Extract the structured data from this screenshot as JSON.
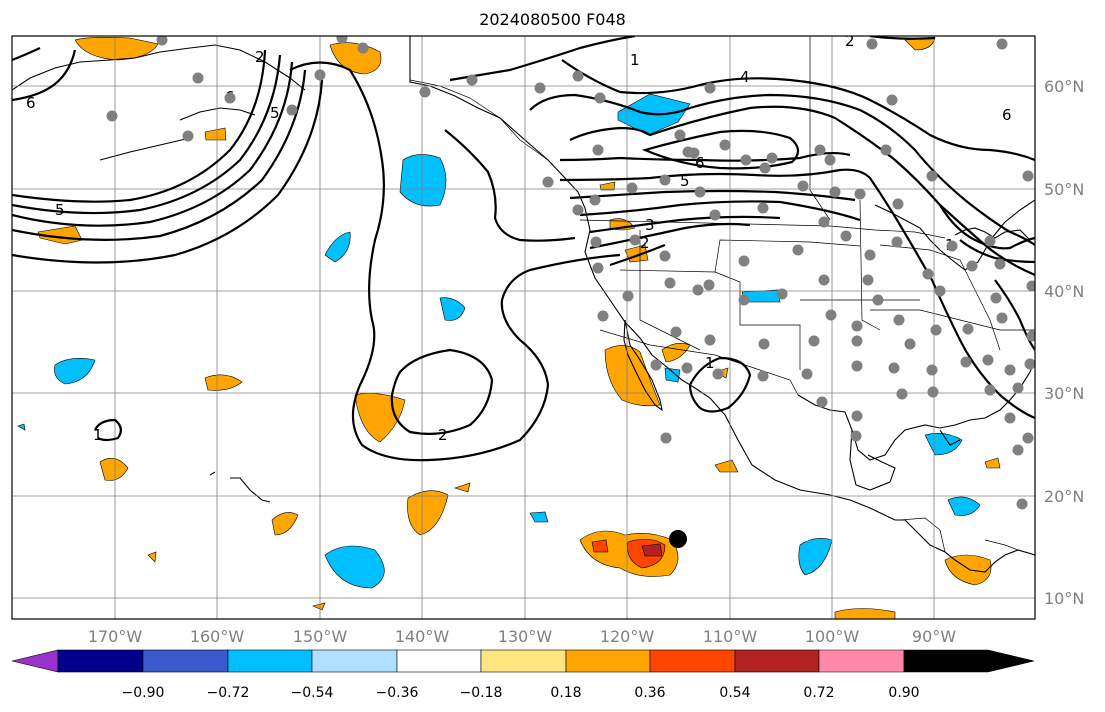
{
  "title": "2024080500 F048",
  "map": {
    "lon_ticks": [
      "170°W",
      "160°W",
      "150°W",
      "140°W",
      "130°W",
      "120°W",
      "110°W",
      "100°W",
      "90°W"
    ],
    "lat_ticks": [
      "60°N",
      "50°N",
      "40°N",
      "30°N",
      "20°N",
      "10°N"
    ],
    "contour_labels": [
      "5",
      "6",
      "2",
      "2",
      "6",
      "1",
      "4",
      "6",
      "5",
      "6",
      "5",
      "3",
      "2",
      "1",
      "1",
      "2",
      "1"
    ],
    "gridline_color": "#808080",
    "station_color": "#808080",
    "marker_color": "#000000"
  },
  "colorbar": {
    "colors": [
      "#9932CC",
      "#00008B",
      "#3A5BCD",
      "#00BFFF",
      "#B0E0FF",
      "#FFFFFF",
      "#FFE680",
      "#FFA500",
      "#FF4500",
      "#B22222",
      "#FF88AA"
    ],
    "ticks": [
      "−0.90",
      "−0.72",
      "−0.54",
      "−0.36",
      "−0.18",
      "0.18",
      "0.36",
      "0.54",
      "0.72",
      "0.90"
    ]
  }
}
